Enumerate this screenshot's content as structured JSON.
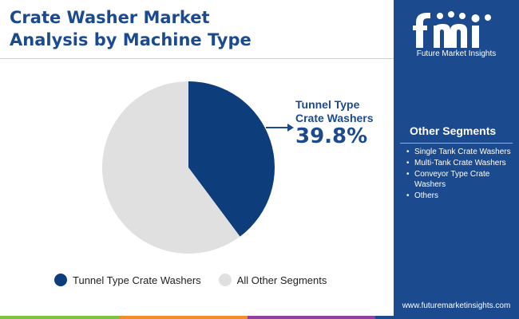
{
  "title_line1": "Crate Washer Market",
  "title_line2": "Analysis by Machine Type",
  "chart_data": {
    "type": "pie",
    "slices": [
      {
        "name": "Tunnel Type Crate Washers",
        "value": 39.8,
        "color": "#0d3d7a"
      },
      {
        "name": "All Other Segments",
        "value": 60.2,
        "color": "#e0e0e0"
      }
    ],
    "callout": {
      "label_line1": "Tunnel Type",
      "label_line2": "Crate Washers",
      "value_text": "39.8%"
    },
    "legend": [
      "Tunnel Type Crate Washers",
      "All Other Segments"
    ],
    "legend_position": "bottom"
  },
  "sidebar": {
    "logo_text": "Future Market Insights",
    "segments_title": "Other Segments",
    "segments": [
      "Single Tank Crate Washers",
      "Multi-Tank Crate Washers",
      "Conveyor Type Crate Washers",
      "Others"
    ],
    "website": "www.futuremarketinsights.com"
  },
  "colors": {
    "brand_blue": "#1c4a8e",
    "slice_primary": "#0d3d7a",
    "slice_other": "#e0e0e0",
    "bottom_bar": [
      "#1c4a8e",
      "#7cc142",
      "#f28c28",
      "#8e3fa0",
      "#1c4a8e"
    ]
  }
}
